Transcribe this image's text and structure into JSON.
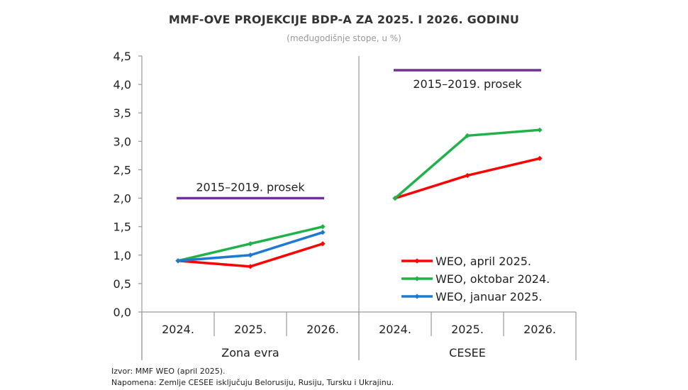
{
  "title": "MMF-OVE PROJEKCIJE BDP-A ZA 2025. I 2026. GODINU",
  "subtitle": "(međugodišnje stope, u %)",
  "footnotes": {
    "source": "Izvor: MMF WEO (april 2025).",
    "note": "Napomena: Zemlje CESEE isključuju Belorusiju, Rusiju, Tursku i Ukrajinu."
  },
  "chart_data": {
    "type": "line",
    "ylim": [
      0,
      4.5
    ],
    "yticks": [
      "0,0",
      "0,5",
      "1,0",
      "1,5",
      "2,0",
      "2,5",
      "3,0",
      "3,5",
      "4,0",
      "4,5"
    ],
    "groups": [
      {
        "label": "Zona evra",
        "categories": [
          "2024.",
          "2025.",
          "2026."
        ],
        "average": {
          "label": "2015–2019. prosek",
          "value": 2.0,
          "color": "#7030a0"
        },
        "series": [
          {
            "name": "WEO, april 2025.",
            "values": [
              0.9,
              0.8,
              1.2
            ],
            "color": "#ff0000"
          },
          {
            "name": "WEO, oktobar 2024.",
            "values": [
              0.9,
              1.2,
              1.5
            ],
            "color": "#1fb14a"
          },
          {
            "name": "WEO, januar 2025.",
            "values": [
              0.9,
              1.0,
              1.4
            ],
            "color": "#1f78d1"
          }
        ]
      },
      {
        "label": "CESEE",
        "categories": [
          "2024.",
          "2025.",
          "2026."
        ],
        "average": {
          "label": "2015–2019. prosek",
          "value": 4.25,
          "color": "#7030a0"
        },
        "series": [
          {
            "name": "WEO, april 2025.",
            "values": [
              2.0,
              2.4,
              2.7
            ],
            "color": "#ff0000"
          },
          {
            "name": "WEO, oktobar 2024.",
            "values": [
              2.0,
              3.1,
              3.2
            ],
            "color": "#1fb14a"
          }
        ]
      }
    ],
    "legend": {
      "placement": "bottom-right",
      "entries": [
        {
          "name": "WEO, april 2025.",
          "color": "#ff0000"
        },
        {
          "name": "WEO, oktobar 2024.",
          "color": "#1fb14a"
        },
        {
          "name": "WEO, januar 2025.",
          "color": "#1f78d1"
        }
      ]
    }
  }
}
